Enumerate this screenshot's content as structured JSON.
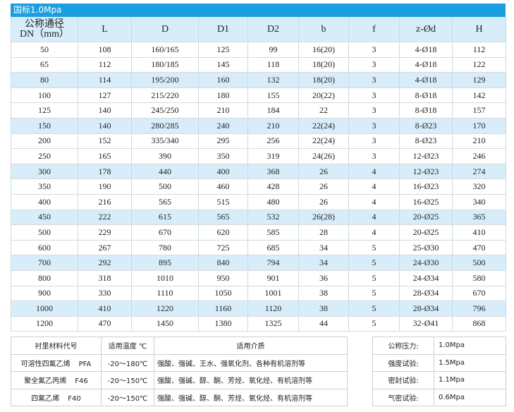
{
  "title": "国标1.0Mpa",
  "table": {
    "header": [
      [
        "公称通径",
        "DN（mm）"
      ],
      "L",
      "D",
      "D1",
      "D2",
      "b",
      "f",
      "z-Ød",
      "H"
    ],
    "rows": [
      [
        "50",
        "108",
        "160/165",
        "125",
        "99",
        "16(20)",
        "3",
        "4-Ø18",
        "112"
      ],
      [
        "65",
        "112",
        "180/185",
        "145",
        "118",
        "18(20)",
        "3",
        "4-Ø18",
        "122"
      ],
      [
        "80",
        "114",
        "195/200",
        "160",
        "132",
        "18(20)",
        "3",
        "4-Ø18",
        "129"
      ],
      [
        "100",
        "127",
        "215/220",
        "180",
        "155",
        "20(22)",
        "3",
        "8-Ø18",
        "142"
      ],
      [
        "125",
        "140",
        "245/250",
        "210",
        "184",
        "22",
        "3",
        "8-Ø18",
        "157"
      ],
      [
        "150",
        "140",
        "280/285",
        "240",
        "210",
        "22(24)",
        "3",
        "8-Ø23",
        "170"
      ],
      [
        "200",
        "152",
        "335/340",
        "295",
        "256",
        "22(24)",
        "3",
        "8-Ø23",
        "210"
      ],
      [
        "250",
        "165",
        "390",
        "350",
        "319",
        "24(26)",
        "3",
        "12-Ø23",
        "246"
      ],
      [
        "300",
        "178",
        "440",
        "400",
        "368",
        "26",
        "4",
        "12-Ø23",
        "274"
      ],
      [
        "350",
        "190",
        "500",
        "460",
        "428",
        "26",
        "4",
        "16-Ø23",
        "320"
      ],
      [
        "400",
        "216",
        "565",
        "515",
        "480",
        "26",
        "4",
        "16-Ø25",
        "340"
      ],
      [
        "450",
        "222",
        "615",
        "565",
        "532",
        "26(28)",
        "4",
        "20-Ø25",
        "365"
      ],
      [
        "500",
        "229",
        "670",
        "620",
        "585",
        "28",
        "4",
        "20-Ø25",
        "410"
      ],
      [
        "600",
        "267",
        "780",
        "725",
        "685",
        "34",
        "5",
        "25-Ø30",
        "470"
      ],
      [
        "700",
        "292",
        "895",
        "840",
        "794",
        "34",
        "5",
        "24-Ø30",
        "500"
      ],
      [
        "800",
        "318",
        "1010",
        "950",
        "901",
        "36",
        "5",
        "24-Ø34",
        "580"
      ],
      [
        "900",
        "330",
        "1110",
        "1050",
        "1001",
        "38",
        "5",
        "28-Ø34",
        "670"
      ],
      [
        "1000",
        "410",
        "1220",
        "1160",
        "1120",
        "38",
        "5",
        "28-Ø34",
        "796"
      ],
      [
        "1200",
        "470",
        "1450",
        "1380",
        "1325",
        "44",
        "5",
        "32-Ø41",
        "868"
      ]
    ]
  },
  "lining": {
    "header": [
      "衬里材料代号",
      "适用温度 ℃",
      "适用介质"
    ],
    "rows": [
      [
        [
          "可溶性四氟乙烯",
          "PFA"
        ],
        "-20～180℃",
        "强酸、强碱、王水、强氧化剂、各种有机溶剂等"
      ],
      [
        [
          "聚全氟乙丙烯",
          "F46"
        ],
        "-20～150℃",
        "强酸、强碱、醇、酮、芳烃、氧化烃、有机溶剂等"
      ],
      [
        [
          "四氟乙烯",
          "F40"
        ],
        "-20～150℃",
        "强酸、强碱、醇、酮、芳烃、氧化烃、有机溶剂等"
      ]
    ]
  },
  "pressure": [
    [
      "公称压力:",
      "1.0Mpa"
    ],
    [
      "强度试验:",
      "1.5Mpa"
    ],
    [
      "密封试验:",
      "1.1Mpa"
    ],
    [
      "气密试验:",
      "0.6Mpa"
    ]
  ]
}
